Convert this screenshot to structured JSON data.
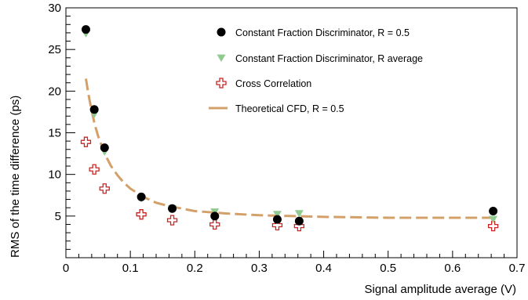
{
  "chart_data": {
    "type": "scatter",
    "xlabel": "Signal amplitude average (V)",
    "ylabel": "RMS of the time difference (ps)",
    "xlim": [
      0,
      0.7
    ],
    "ylim": [
      0,
      30
    ],
    "x_ticks": [
      "0",
      "0.1",
      "0.2",
      "0.3",
      "0.4",
      "0.5",
      "0.6",
      "0.7"
    ],
    "y_ticks": [
      "5",
      "10",
      "15",
      "20",
      "25",
      "30"
    ],
    "legend_position": "top-right",
    "series": [
      {
        "name": "Constant Fraction Discriminator, R = 0.5",
        "marker": "circle",
        "color": "#000000",
        "points": [
          [
            0.031,
            27.4
          ],
          [
            0.044,
            17.8
          ],
          [
            0.06,
            13.2
          ],
          [
            0.117,
            7.3
          ],
          [
            0.165,
            5.9
          ],
          [
            0.231,
            5.0
          ],
          [
            0.328,
            4.6
          ],
          [
            0.362,
            4.4
          ],
          [
            0.663,
            5.6
          ]
        ]
      },
      {
        "name": "Constant Fraction Discriminator, R average",
        "marker": "triangle-down",
        "color": "#8fca8f",
        "points": [
          [
            0.031,
            26.9
          ],
          [
            0.044,
            17.2
          ],
          [
            0.06,
            12.7
          ],
          [
            0.117,
            7.1
          ],
          [
            0.165,
            5.9
          ],
          [
            0.231,
            5.5
          ],
          [
            0.328,
            5.2
          ],
          [
            0.362,
            5.3
          ],
          [
            0.663,
            4.6
          ]
        ]
      },
      {
        "name": "Cross Correlation",
        "marker": "open-cross",
        "color": "#cc2222",
        "points": [
          [
            0.031,
            13.9
          ],
          [
            0.044,
            10.6
          ],
          [
            0.06,
            8.3
          ],
          [
            0.117,
            5.2
          ],
          [
            0.165,
            4.5
          ],
          [
            0.231,
            4.0
          ],
          [
            0.328,
            3.9
          ],
          [
            0.362,
            3.8
          ],
          [
            0.663,
            3.8
          ]
        ]
      },
      {
        "name": "Theoretical CFD, R = 0.5",
        "marker": "dashed-line",
        "color": "#d4a06a",
        "points": [
          [
            0.031,
            21.5
          ],
          [
            0.035,
            19.6
          ],
          [
            0.04,
            17.6
          ],
          [
            0.045,
            15.9
          ],
          [
            0.05,
            14.6
          ],
          [
            0.06,
            12.5
          ],
          [
            0.07,
            11.0
          ],
          [
            0.08,
            9.9
          ],
          [
            0.09,
            9.0
          ],
          [
            0.1,
            8.3
          ],
          [
            0.12,
            7.3
          ],
          [
            0.14,
            6.6
          ],
          [
            0.16,
            6.2
          ],
          [
            0.18,
            5.9
          ],
          [
            0.2,
            5.6
          ],
          [
            0.25,
            5.3
          ],
          [
            0.3,
            5.1
          ],
          [
            0.35,
            5.0
          ],
          [
            0.4,
            4.9
          ],
          [
            0.45,
            4.85
          ],
          [
            0.5,
            4.8
          ],
          [
            0.55,
            4.8
          ],
          [
            0.6,
            4.8
          ],
          [
            0.663,
            4.8
          ]
        ]
      }
    ]
  }
}
